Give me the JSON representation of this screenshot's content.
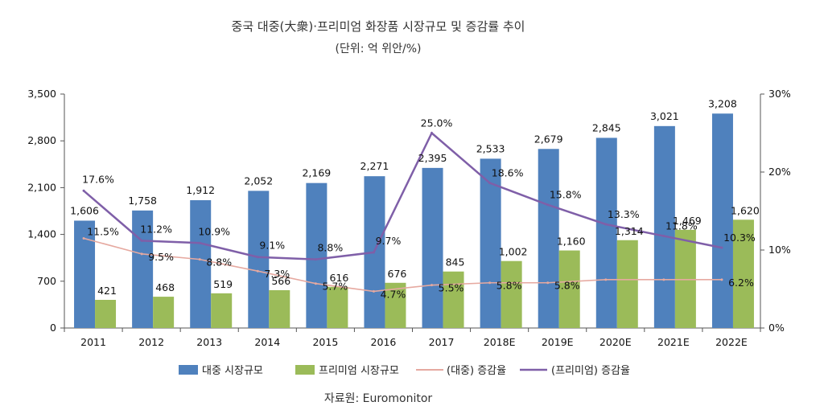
{
  "chart_data": {
    "type": "bar",
    "title": "중국 대중(大衆)·프리미엄 화장품 시장규모 및 증감률 추이",
    "subtitle": "(단위: 억 위안/%)",
    "source": "자료원: Euromonitor",
    "categories": [
      "2011",
      "2012",
      "2013",
      "2014",
      "2015",
      "2016",
      "2017",
      "2018E",
      "2019E",
      "2020E",
      "2021E",
      "2022E"
    ],
    "ylim": [
      0,
      3500
    ],
    "yticks": [
      "0",
      "700",
      "1,400",
      "2,100",
      "2,800",
      "3,500"
    ],
    "y2lim": [
      0,
      30
    ],
    "y2ticks": [
      "0%",
      "10%",
      "20%",
      "30%"
    ],
    "grid": false,
    "legend_position": "bottom",
    "series": [
      {
        "name": "대중 시장규모",
        "kind": "bar",
        "axis": "left",
        "color": "#4f81bd",
        "values": [
          1606,
          1758,
          1912,
          2052,
          2169,
          2271,
          2395,
          2533,
          2679,
          2845,
          3021,
          3208
        ],
        "labels": [
          "1,606",
          "1,758",
          "1,912",
          "2,052",
          "2,169",
          "2,271",
          "2,395",
          "2,533",
          "2,679",
          "2,845",
          "3,021",
          "3,208"
        ]
      },
      {
        "name": "프리미엄 시장규모",
        "kind": "bar",
        "axis": "left",
        "color": "#9bbb59",
        "values": [
          421,
          468,
          519,
          566,
          616,
          676,
          845,
          1002,
          1160,
          1314,
          1469,
          1620
        ],
        "labels": [
          "421",
          "468",
          "519",
          "566",
          "616",
          "676",
          "845",
          "1,002",
          "1,160",
          "1,314",
          "1,469",
          "1,620"
        ]
      },
      {
        "name": "(대중) 증감율",
        "kind": "line",
        "axis": "right",
        "color": "#e6a9a0",
        "values": [
          11.5,
          9.5,
          8.8,
          7.3,
          5.7,
          4.7,
          5.5,
          5.8,
          5.8,
          6.2,
          6.2,
          6.2
        ],
        "labels": [
          "11.5%",
          "9.5%",
          "8.8%",
          "7.3%",
          "5.7%",
          "4.7%",
          "5.5%",
          "5.8%",
          "5.8%",
          "",
          "",
          "6.2%"
        ]
      },
      {
        "name": "(프리미엄) 증감율",
        "kind": "line",
        "axis": "right",
        "color": "#7f5fa8",
        "values": [
          17.6,
          11.2,
          10.9,
          9.1,
          8.8,
          9.7,
          25.0,
          18.6,
          15.8,
          13.3,
          11.8,
          10.3
        ],
        "labels": [
          "17.6%",
          "11.2%",
          "10.9%",
          "9.1%",
          "8.8%",
          "9.7%",
          "25.0%",
          "18.6%",
          "15.8%",
          "13.3%",
          "11.8%",
          "10.3%"
        ]
      }
    ]
  }
}
